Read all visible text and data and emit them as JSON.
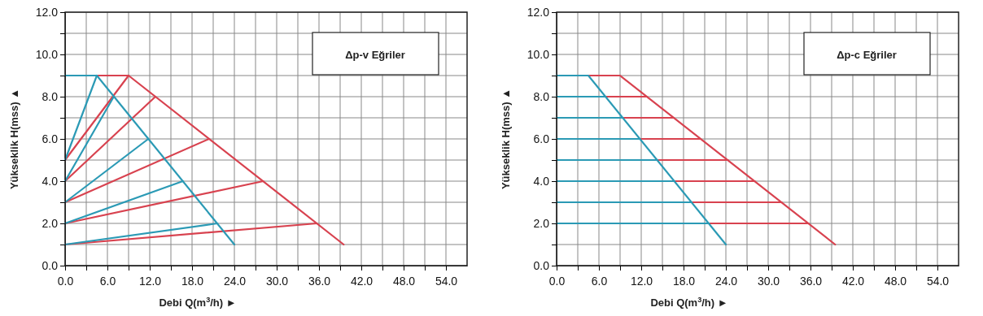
{
  "chart_data": [
    {
      "type": "line",
      "annotations": [
        "Δp-v Eğriler"
      ],
      "xlabel": "Debi Q(m$^{3}$/h) ►",
      "ylabel": "Yükseklik H(mss) ▲",
      "grid": true,
      "xlim": [
        0,
        57
      ],
      "ylim": [
        0,
        12
      ],
      "xticks": [
        {
          "value": 0,
          "label": "0.0"
        },
        {
          "value": 3,
          "label": null
        },
        {
          "value": 6,
          "label": "6.0"
        },
        {
          "value": 9,
          "label": null
        },
        {
          "value": 12,
          "label": "12.0"
        },
        {
          "value": 15,
          "label": null
        },
        {
          "value": 18,
          "label": "18.0"
        },
        {
          "value": 21,
          "label": null
        },
        {
          "value": 24,
          "label": "24.0"
        },
        {
          "value": 27,
          "label": null
        },
        {
          "value": 30,
          "label": "30.0"
        },
        {
          "value": 33,
          "label": null
        },
        {
          "value": 36,
          "label": "36.0"
        },
        {
          "value": 39,
          "label": null
        },
        {
          "value": 42,
          "label": "42.0"
        },
        {
          "value": 45,
          "label": null
        },
        {
          "value": 48,
          "label": "48.0"
        },
        {
          "value": 51,
          "label": null
        },
        {
          "value": 54,
          "label": "54.0"
        }
      ],
      "yticks": [
        {
          "value": 0,
          "label": "0.0"
        },
        {
          "value": 1,
          "label": null
        },
        {
          "value": 2,
          "label": "2.0"
        },
        {
          "value": 3,
          "label": null
        },
        {
          "value": 4,
          "label": "4.0"
        },
        {
          "value": 5,
          "label": null
        },
        {
          "value": 6,
          "label": "6.0"
        },
        {
          "value": 7,
          "label": null
        },
        {
          "value": 8,
          "label": "8.0"
        },
        {
          "value": 9,
          "label": null
        },
        {
          "value": 10,
          "label": "10.0"
        },
        {
          "value": 11,
          "label": null
        },
        {
          "value": 12,
          "label": "12.0"
        }
      ],
      "series": [
        {
          "color": "#d8424f",
          "x": [
            4.5,
            9,
            39.5
          ],
          "values": [
            9,
            9,
            1
          ]
        },
        {
          "color": "#d8424f",
          "x": [
            0,
            9
          ],
          "values": [
            5,
            9
          ]
        },
        {
          "color": "#d8424f",
          "x": [
            0,
            12.8
          ],
          "values": [
            4,
            8
          ]
        },
        {
          "color": "#d8424f",
          "x": [
            0,
            20.4
          ],
          "values": [
            3,
            6
          ]
        },
        {
          "color": "#d8424f",
          "x": [
            0,
            28.1
          ],
          "values": [
            2,
            4
          ]
        },
        {
          "color": "#d8424f",
          "x": [
            0,
            35.7
          ],
          "values": [
            1,
            2
          ]
        },
        {
          "color": "#2b9ab5",
          "x": [
            0,
            4.5,
            24
          ],
          "values": [
            9,
            9,
            1
          ]
        },
        {
          "color": "#2b9ab5",
          "x": [
            0,
            4.5
          ],
          "values": [
            5,
            9
          ]
        },
        {
          "color": "#2b9ab5",
          "x": [
            0,
            6.9
          ],
          "values": [
            4,
            8
          ]
        },
        {
          "color": "#2b9ab5",
          "x": [
            0,
            11.8
          ],
          "values": [
            3,
            6
          ]
        },
        {
          "color": "#2b9ab5",
          "x": [
            0,
            16.7
          ],
          "values": [
            2,
            4
          ]
        },
        {
          "color": "#2b9ab5",
          "x": [
            0,
            21.6
          ],
          "values": [
            1,
            2
          ]
        }
      ]
    },
    {
      "type": "line",
      "annotations": [
        "Δp-c Eğriler"
      ],
      "xlabel": "Debi Q(m$^{3}$/h) ►",
      "ylabel": "Yükseklik H(mss) ▲",
      "grid": true,
      "xlim": [
        0,
        57
      ],
      "ylim": [
        0,
        12
      ],
      "xticks": [
        {
          "value": 0,
          "label": "0.0"
        },
        {
          "value": 3,
          "label": null
        },
        {
          "value": 6,
          "label": "6.0"
        },
        {
          "value": 9,
          "label": null
        },
        {
          "value": 12,
          "label": "12.0"
        },
        {
          "value": 15,
          "label": null
        },
        {
          "value": 18,
          "label": "18.0"
        },
        {
          "value": 21,
          "label": null
        },
        {
          "value": 24,
          "label": "24.0"
        },
        {
          "value": 27,
          "label": null
        },
        {
          "value": 30,
          "label": "30.0"
        },
        {
          "value": 33,
          "label": null
        },
        {
          "value": 36,
          "label": "36.0"
        },
        {
          "value": 39,
          "label": null
        },
        {
          "value": 42,
          "label": "42.0"
        },
        {
          "value": 45,
          "label": null
        },
        {
          "value": 48,
          "label": "48.0"
        },
        {
          "value": 51,
          "label": null
        },
        {
          "value": 54,
          "label": "54.0"
        }
      ],
      "yticks": [
        {
          "value": 0,
          "label": "0.0"
        },
        {
          "value": 1,
          "label": null
        },
        {
          "value": 2,
          "label": "2.0"
        },
        {
          "value": 3,
          "label": null
        },
        {
          "value": 4,
          "label": "4.0"
        },
        {
          "value": 5,
          "label": null
        },
        {
          "value": 6,
          "label": "6.0"
        },
        {
          "value": 7,
          "label": null
        },
        {
          "value": 8,
          "label": "8.0"
        },
        {
          "value": 9,
          "label": null
        },
        {
          "value": 10,
          "label": "10.0"
        },
        {
          "value": 11,
          "label": null
        },
        {
          "value": 12,
          "label": "12.0"
        }
      ],
      "series": [
        {
          "color": "#d8424f",
          "x": [
            4.5,
            9,
            39.5
          ],
          "values": [
            9,
            9,
            1
          ]
        },
        {
          "color": "#d8424f",
          "x": [
            6.9,
            12.8
          ],
          "values": [
            8,
            8
          ]
        },
        {
          "color": "#d8424f",
          "x": [
            9.4,
            16.6
          ],
          "values": [
            7,
            7
          ]
        },
        {
          "color": "#d8424f",
          "x": [
            11.8,
            20.4
          ],
          "values": [
            6,
            6
          ]
        },
        {
          "color": "#d8424f",
          "x": [
            14.3,
            24.3
          ],
          "values": [
            5,
            5
          ]
        },
        {
          "color": "#d8424f",
          "x": [
            16.7,
            28.1
          ],
          "values": [
            4,
            4
          ]
        },
        {
          "color": "#d8424f",
          "x": [
            19.1,
            31.9
          ],
          "values": [
            3,
            3
          ]
        },
        {
          "color": "#d8424f",
          "x": [
            21.6,
            35.7
          ],
          "values": [
            2,
            2
          ]
        },
        {
          "color": "#2b9ab5",
          "x": [
            0,
            4.5,
            24
          ],
          "values": [
            9,
            9,
            1
          ]
        },
        {
          "color": "#2b9ab5",
          "x": [
            0,
            6.9
          ],
          "values": [
            8,
            8
          ]
        },
        {
          "color": "#2b9ab5",
          "x": [
            0,
            9.4
          ],
          "values": [
            7,
            7
          ]
        },
        {
          "color": "#2b9ab5",
          "x": [
            0,
            11.8
          ],
          "values": [
            6,
            6
          ]
        },
        {
          "color": "#2b9ab5",
          "x": [
            0,
            14.3
          ],
          "values": [
            5,
            5
          ]
        },
        {
          "color": "#2b9ab5",
          "x": [
            0,
            16.7
          ],
          "values": [
            4,
            4
          ]
        },
        {
          "color": "#2b9ab5",
          "x": [
            0,
            19.1
          ],
          "values": [
            3,
            3
          ]
        },
        {
          "color": "#2b9ab5",
          "x": [
            0,
            21.6
          ],
          "values": [
            2,
            2
          ]
        }
      ]
    }
  ]
}
